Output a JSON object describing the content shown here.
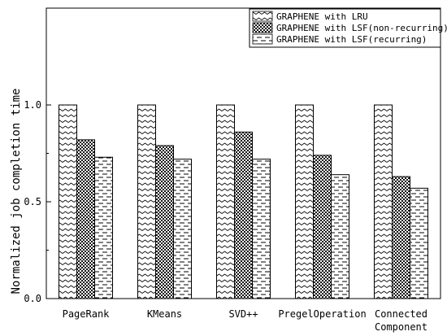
{
  "chart_data": {
    "type": "bar",
    "title": "",
    "xlabel": "",
    "ylabel": "Normalized job completion time",
    "ylim": [
      0,
      1.0
    ],
    "y_axis_max": 1.5,
    "yticks": [
      "0.0",
      "0.5",
      "1.0"
    ],
    "grid": false,
    "legend_position": "top-right",
    "categories": [
      [
        "PageRank"
      ],
      [
        "KMeans"
      ],
      [
        "SVD++"
      ],
      [
        "PregelOperation"
      ],
      [
        "Connected",
        "Component"
      ]
    ],
    "series": [
      {
        "name": "GRAPHENE with LRU",
        "pattern": "wave",
        "values": [
          1.0,
          1.0,
          1.0,
          1.0,
          1.0
        ]
      },
      {
        "name": "GRAPHENE with LSF(non-recurring)",
        "pattern": "dots",
        "values": [
          0.82,
          0.79,
          0.86,
          0.74,
          0.63
        ]
      },
      {
        "name": "GRAPHENE with LSF(recurring)",
        "pattern": "dash",
        "values": [
          0.73,
          0.72,
          0.72,
          0.64,
          0.57
        ]
      }
    ],
    "colors": {
      "axis": "#000000",
      "bar_fill": "#ffffff",
      "pattern": "#000000"
    }
  }
}
